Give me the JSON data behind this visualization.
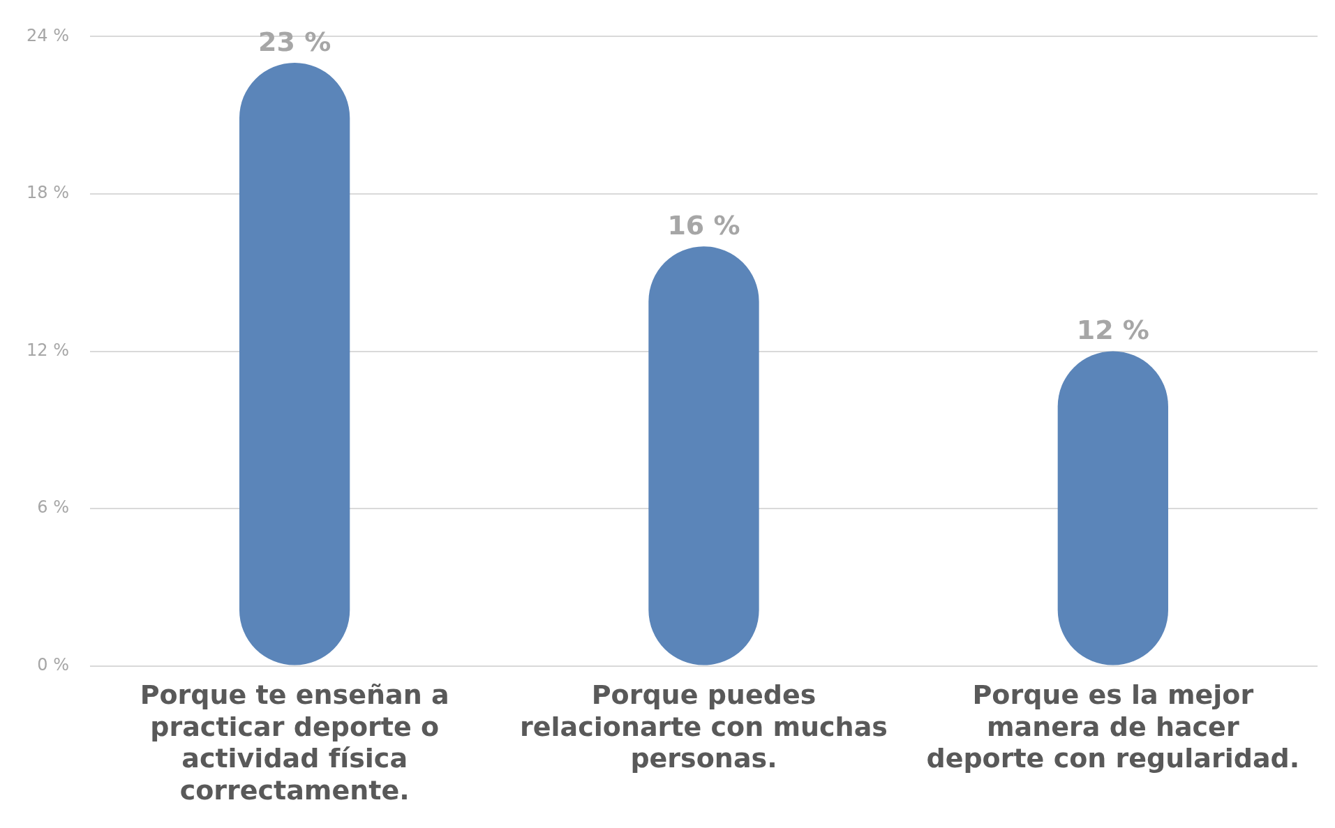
{
  "chart_data": {
    "type": "bar",
    "categories": [
      "Porque te enseñan a practicar deporte o actividad física correctamente.",
      "Porque puedes relacionarte con muchas personas.",
      "Porque es la mejor manera de hacer deporte con regularidad."
    ],
    "values": [
      23,
      16,
      12
    ],
    "color": "#5b85b9",
    "value_labels": [
      "23 %",
      "16 %",
      "12 %"
    ],
    "ylim": [
      0,
      24
    ],
    "yticks": [
      {
        "value": 0,
        "label": "0 %"
      },
      {
        "value": 6,
        "label": "6 %"
      },
      {
        "value": 12,
        "label": "12 %"
      },
      {
        "value": 18,
        "label": "18 %"
      },
      {
        "value": 24,
        "label": "24 %"
      }
    ],
    "grid": "y",
    "legend": false
  }
}
